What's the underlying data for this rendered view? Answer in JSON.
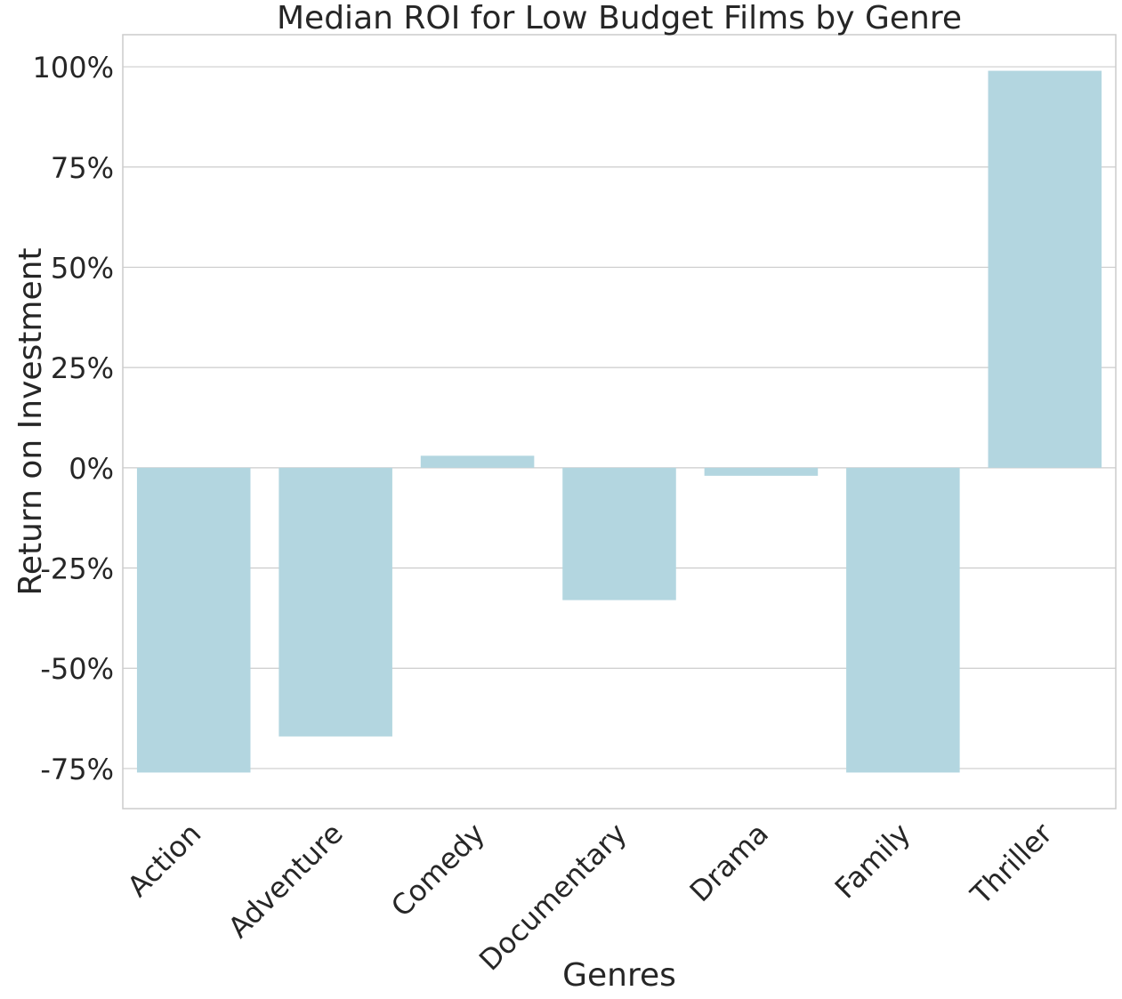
{
  "chart_data": {
    "type": "bar",
    "title": "Median ROI for Low Budget Films by Genre",
    "xlabel": "Genres",
    "ylabel": "Return on Investment",
    "categories": [
      "Action",
      "Adventure",
      "Comedy",
      "Documentary",
      "Drama",
      "Family",
      "Thriller"
    ],
    "values": [
      -76,
      -67,
      3,
      -33,
      -2,
      -76,
      99
    ],
    "ylim": [
      -85,
      108
    ],
    "yticks": [
      -75,
      -50,
      -25,
      0,
      25,
      50,
      75,
      100
    ],
    "ytick_labels": [
      "-75%",
      "-50%",
      "-25%",
      "0%",
      "25%",
      "50%",
      "75%",
      "100%"
    ],
    "grid": "horizontal",
    "bar_color": "#b3d6e0",
    "grid_color": "#cccccc"
  }
}
